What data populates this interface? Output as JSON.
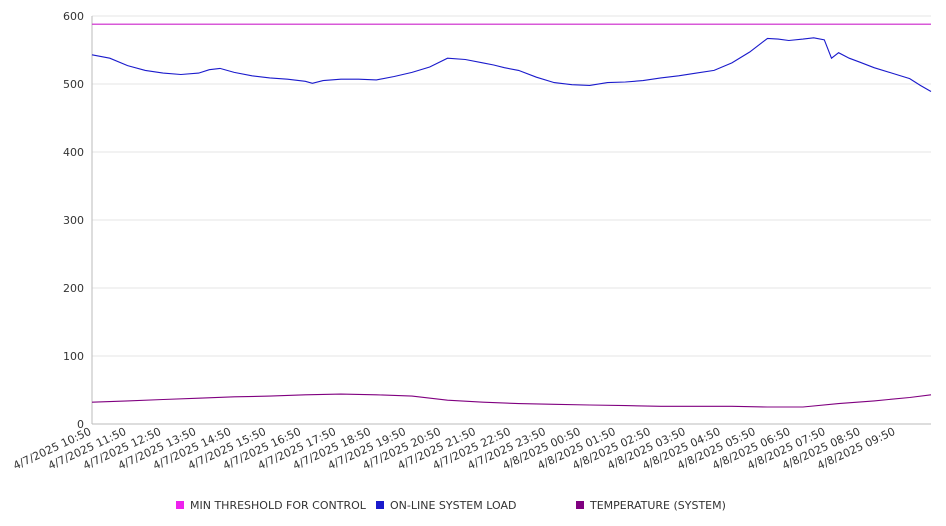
{
  "chart_data": {
    "type": "line",
    "title": "",
    "xlabel": "",
    "ylabel": "",
    "ylim": [
      0,
      600
    ],
    "yticks": [
      0,
      100,
      200,
      300,
      400,
      500,
      600
    ],
    "grid": true,
    "legend_position": "bottom",
    "x_tick_labels": [
      "4/7/2025 10:50",
      "4/7/2025 11:50",
      "4/7/2025 12:50",
      "4/7/2025 13:50",
      "4/7/2025 14:50",
      "4/7/2025 15:50",
      "4/7/2025 16:50",
      "4/7/2025 17:50",
      "4/7/2025 18:50",
      "4/7/2025 19:50",
      "4/7/2025 20:50",
      "4/7/2025 21:50",
      "4/7/2025 22:50",
      "4/7/2025 23:50",
      "4/8/2025 00:50",
      "4/8/2025 01:50",
      "4/8/2025 02:50",
      "4/8/2025 03:50",
      "4/8/2025 04:50",
      "4/8/2025 05:50",
      "4/8/2025 06:50",
      "4/8/2025 07:50",
      "4/8/2025 08:50",
      "4/8/2025 09:50"
    ],
    "x_hours_span": [
      0,
      23.6
    ],
    "series": [
      {
        "name": "MIN THRESHOLD FOR CONTROL",
        "color": "#cc22cc",
        "x": [
          0,
          23.6
        ],
        "values": [
          588,
          588
        ]
      },
      {
        "name": "ON-LINE SYSTEM LOAD",
        "color": "#1a1acc",
        "x": [
          0,
          0.5,
          1,
          1.5,
          2,
          2.5,
          3,
          3.3,
          3.6,
          4,
          4.5,
          5,
          5.5,
          6,
          6.2,
          6.5,
          7,
          7.5,
          8,
          8.5,
          9,
          9.5,
          10,
          10.5,
          11,
          11.3,
          11.6,
          12,
          12.5,
          13,
          13.5,
          14,
          14.5,
          15,
          15.5,
          16,
          16.5,
          17,
          17.5,
          18,
          18.5,
          19,
          19.3,
          19.6,
          20,
          20.3,
          20.6,
          20.8,
          21,
          21.3,
          21.6,
          22,
          22.5,
          23,
          23.3,
          23.6
        ],
        "values": [
          543,
          538,
          527,
          520,
          516,
          514,
          516,
          521,
          523,
          517,
          512,
          509,
          507,
          504,
          501,
          505,
          507,
          507,
          506,
          511,
          517,
          525,
          538,
          536,
          531,
          528,
          524,
          520,
          510,
          502,
          499,
          498,
          502,
          503,
          505,
          509,
          512,
          516,
          520,
          531,
          547,
          567,
          566,
          564,
          566,
          568,
          565,
          538,
          546,
          538,
          532,
          524,
          516,
          508,
          498,
          489
        ]
      },
      {
        "name": "TEMPERATURE (SYSTEM)",
        "color": "#800080",
        "x": [
          0,
          1,
          2,
          3,
          4,
          5,
          6,
          7,
          8,
          9,
          10,
          11,
          12,
          13,
          14,
          15,
          16,
          17,
          18,
          19,
          20,
          21,
          22,
          23,
          23.6
        ],
        "values": [
          32,
          34,
          36,
          38,
          40,
          41,
          43,
          44,
          43,
          41,
          35,
          32,
          30,
          29,
          28,
          27,
          26,
          26,
          26,
          25,
          25,
          30,
          34,
          39,
          43
        ]
      }
    ]
  },
  "legend": {
    "items": [
      {
        "label": "MIN THRESHOLD FOR CONTROL",
        "color": "#ee22ee"
      },
      {
        "label": "ON-LINE SYSTEM LOAD",
        "color": "#1a1acc"
      },
      {
        "label": "TEMPERATURE (SYSTEM)",
        "color": "#800080"
      }
    ]
  }
}
